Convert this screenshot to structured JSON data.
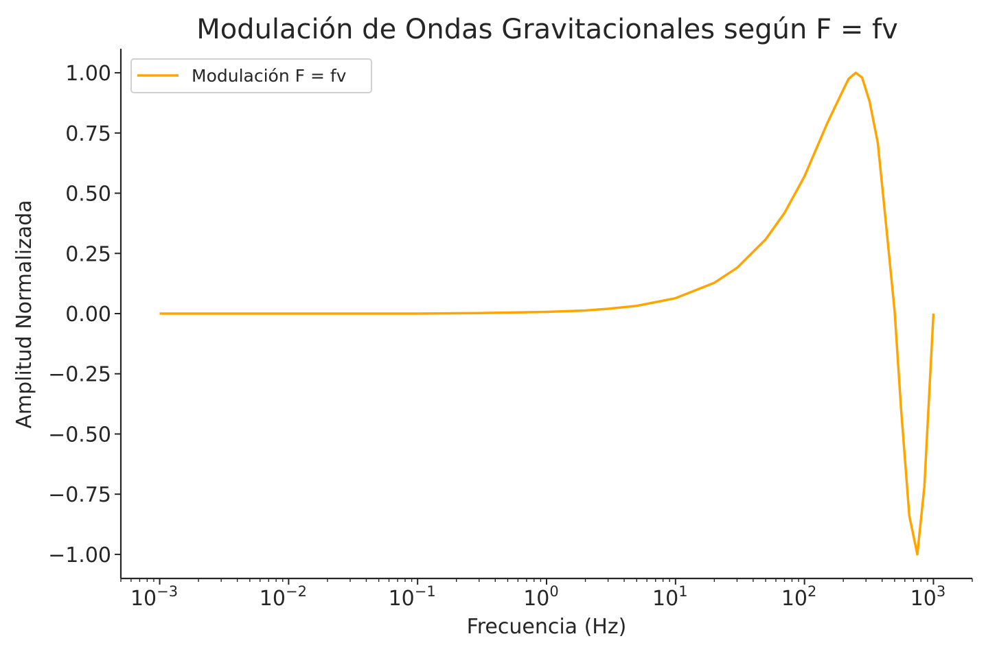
{
  "chart_data": {
    "type": "line",
    "title": "Modulación de Ondas Gravitacionales según F = fv",
    "xlabel": "Frecuencia (Hz)",
    "ylabel": "Amplitud Normalizada",
    "x_scale": "log",
    "xlim": [
      0.0005,
      2000
    ],
    "ylim": [
      -1.1,
      1.1
    ],
    "grid": false,
    "legend_position": "top-left",
    "x_ticks": [
      {
        "value": 0.001,
        "base": "10",
        "exp": "−3"
      },
      {
        "value": 0.01,
        "base": "10",
        "exp": "−2"
      },
      {
        "value": 0.1,
        "base": "10",
        "exp": "−1"
      },
      {
        "value": 1,
        "base": "10",
        "exp": "0"
      },
      {
        "value": 10,
        "base": "10",
        "exp": "1"
      },
      {
        "value": 100,
        "base": "10",
        "exp": "2"
      },
      {
        "value": 1000,
        "base": "10",
        "exp": "3"
      }
    ],
    "y_ticks": [
      {
        "value": 1.0,
        "label": "1.00"
      },
      {
        "value": 0.75,
        "label": "0.75"
      },
      {
        "value": 0.5,
        "label": "0.50"
      },
      {
        "value": 0.25,
        "label": "0.25"
      },
      {
        "value": 0.0,
        "label": "0.00"
      },
      {
        "value": -0.25,
        "label": "−0.25"
      },
      {
        "value": -0.5,
        "label": "−0.50"
      },
      {
        "value": -0.75,
        "label": "−0.75"
      },
      {
        "value": -1.0,
        "label": "−1.00"
      }
    ],
    "series": [
      {
        "name": "Modulación F = fv",
        "color": "#FFA500",
        "x": [
          0.001,
          0.01,
          0.1,
          0.3,
          1,
          2,
          3,
          5,
          10,
          20,
          30,
          50,
          70,
          100,
          150,
          200,
          220,
          250,
          280,
          320,
          370,
          420,
          500,
          560,
          650,
          750,
          850,
          1000
        ],
        "y": [
          0.0,
          0.0,
          0.0,
          0.002,
          0.007,
          0.013,
          0.02,
          0.032,
          0.064,
          0.128,
          0.19,
          0.308,
          0.418,
          0.57,
          0.79,
          0.93,
          0.975,
          1.0,
          0.98,
          0.88,
          0.71,
          0.42,
          0.01,
          -0.39,
          -0.84,
          -1.0,
          -0.72,
          0.0
        ]
      }
    ]
  }
}
